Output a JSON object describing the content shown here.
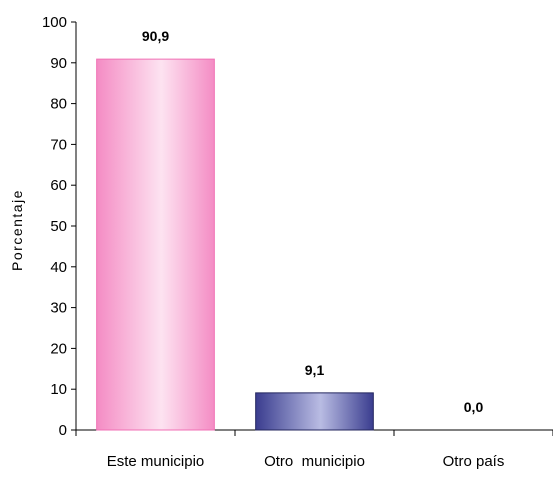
{
  "chart_data": {
    "type": "bar",
    "title": "",
    "xlabel": "",
    "ylabel": "Porcentaje",
    "ylim": [
      0,
      100
    ],
    "yticks": [
      0,
      10,
      20,
      30,
      40,
      50,
      60,
      70,
      80,
      90,
      100
    ],
    "categories": [
      "Este municipio",
      "Otro  municipio",
      "Otro país"
    ],
    "values": [
      90.9,
      9.1,
      0.0
    ],
    "value_labels": [
      "90,9",
      "9,1",
      "0,0"
    ],
    "grid": false,
    "legend": "none",
    "colors": {
      "bars": [
        "#f48cc4",
        "#3a3d8f",
        "#ffffff"
      ],
      "bar_highlights": [
        "#fde3f1",
        "#b9bce3",
        "#ffffff"
      ]
    }
  }
}
